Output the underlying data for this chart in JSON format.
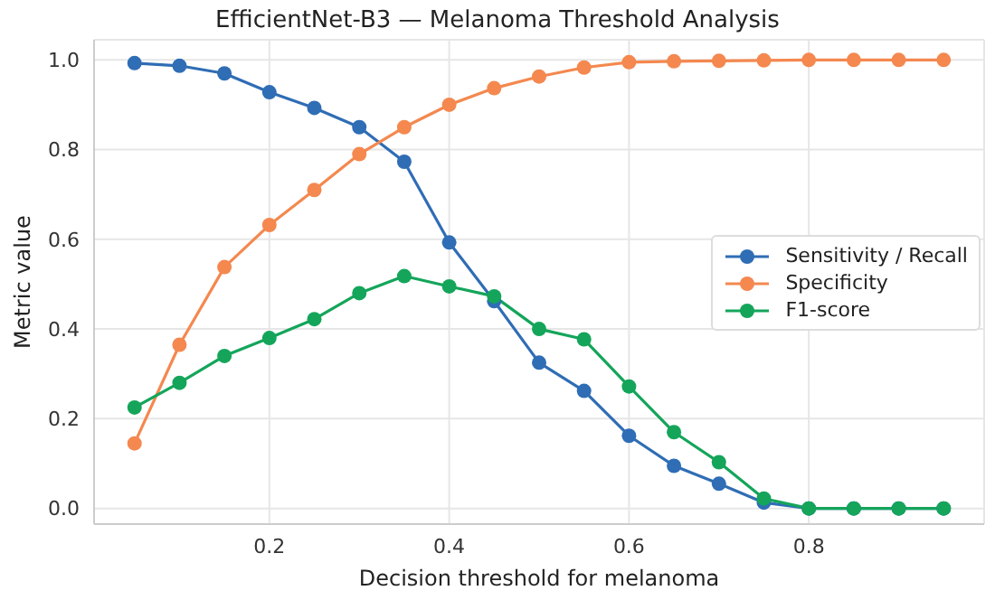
{
  "chart_data": {
    "type": "line",
    "title": "EfficientNet-B3 — Melanoma Threshold Analysis",
    "xlabel": "Decision threshold for melanoma",
    "ylabel": "Metric value",
    "x": [
      0.05,
      0.1,
      0.15,
      0.2,
      0.25,
      0.3,
      0.35,
      0.4,
      0.45,
      0.5,
      0.55,
      0.6,
      0.65,
      0.7,
      0.75,
      0.8,
      0.85,
      0.9,
      0.95
    ],
    "series": [
      {
        "name": "Sensitivity / Recall",
        "color": "#2f6db5",
        "values": [
          0.993,
          0.987,
          0.97,
          0.928,
          0.893,
          0.85,
          0.773,
          0.593,
          0.462,
          0.325,
          0.262,
          0.162,
          0.095,
          0.055,
          0.013,
          0,
          0,
          0,
          0
        ]
      },
      {
        "name": "Specificity",
        "color": "#f4884f",
        "values": [
          0.145,
          0.365,
          0.538,
          0.632,
          0.71,
          0.79,
          0.85,
          0.9,
          0.937,
          0.963,
          0.983,
          0.995,
          0.997,
          0.998,
          0.999,
          1,
          1,
          1,
          1
        ]
      },
      {
        "name": "F1-score",
        "color": "#14a55a",
        "values": [
          0.225,
          0.28,
          0.34,
          0.38,
          0.422,
          0.48,
          0.518,
          0.495,
          0.473,
          0.4,
          0.377,
          0.272,
          0.17,
          0.103,
          0.022,
          0,
          0,
          0,
          0
        ]
      }
    ],
    "xlim": [
      0.005,
      0.995
    ],
    "xticks": [
      {
        "value": 0.2,
        "label": "0.2"
      },
      {
        "value": 0.4,
        "label": "0.4"
      },
      {
        "value": 0.6,
        "label": "0.6"
      },
      {
        "value": 0.8,
        "label": "0.8"
      }
    ],
    "ylim": [
      -0.035,
      1.045
    ],
    "yticks": [
      {
        "value": 0,
        "label": "0.0"
      },
      {
        "value": 0.2,
        "label": "0.2"
      },
      {
        "value": 0.4,
        "label": "0.4"
      },
      {
        "value": 0.6,
        "label": "0.6"
      },
      {
        "value": 0.8,
        "label": "0.8"
      },
      {
        "value": 1,
        "label": "1.0"
      }
    ],
    "grid": true,
    "legend": "right",
    "marker": "circle",
    "line_style": "solid"
  }
}
